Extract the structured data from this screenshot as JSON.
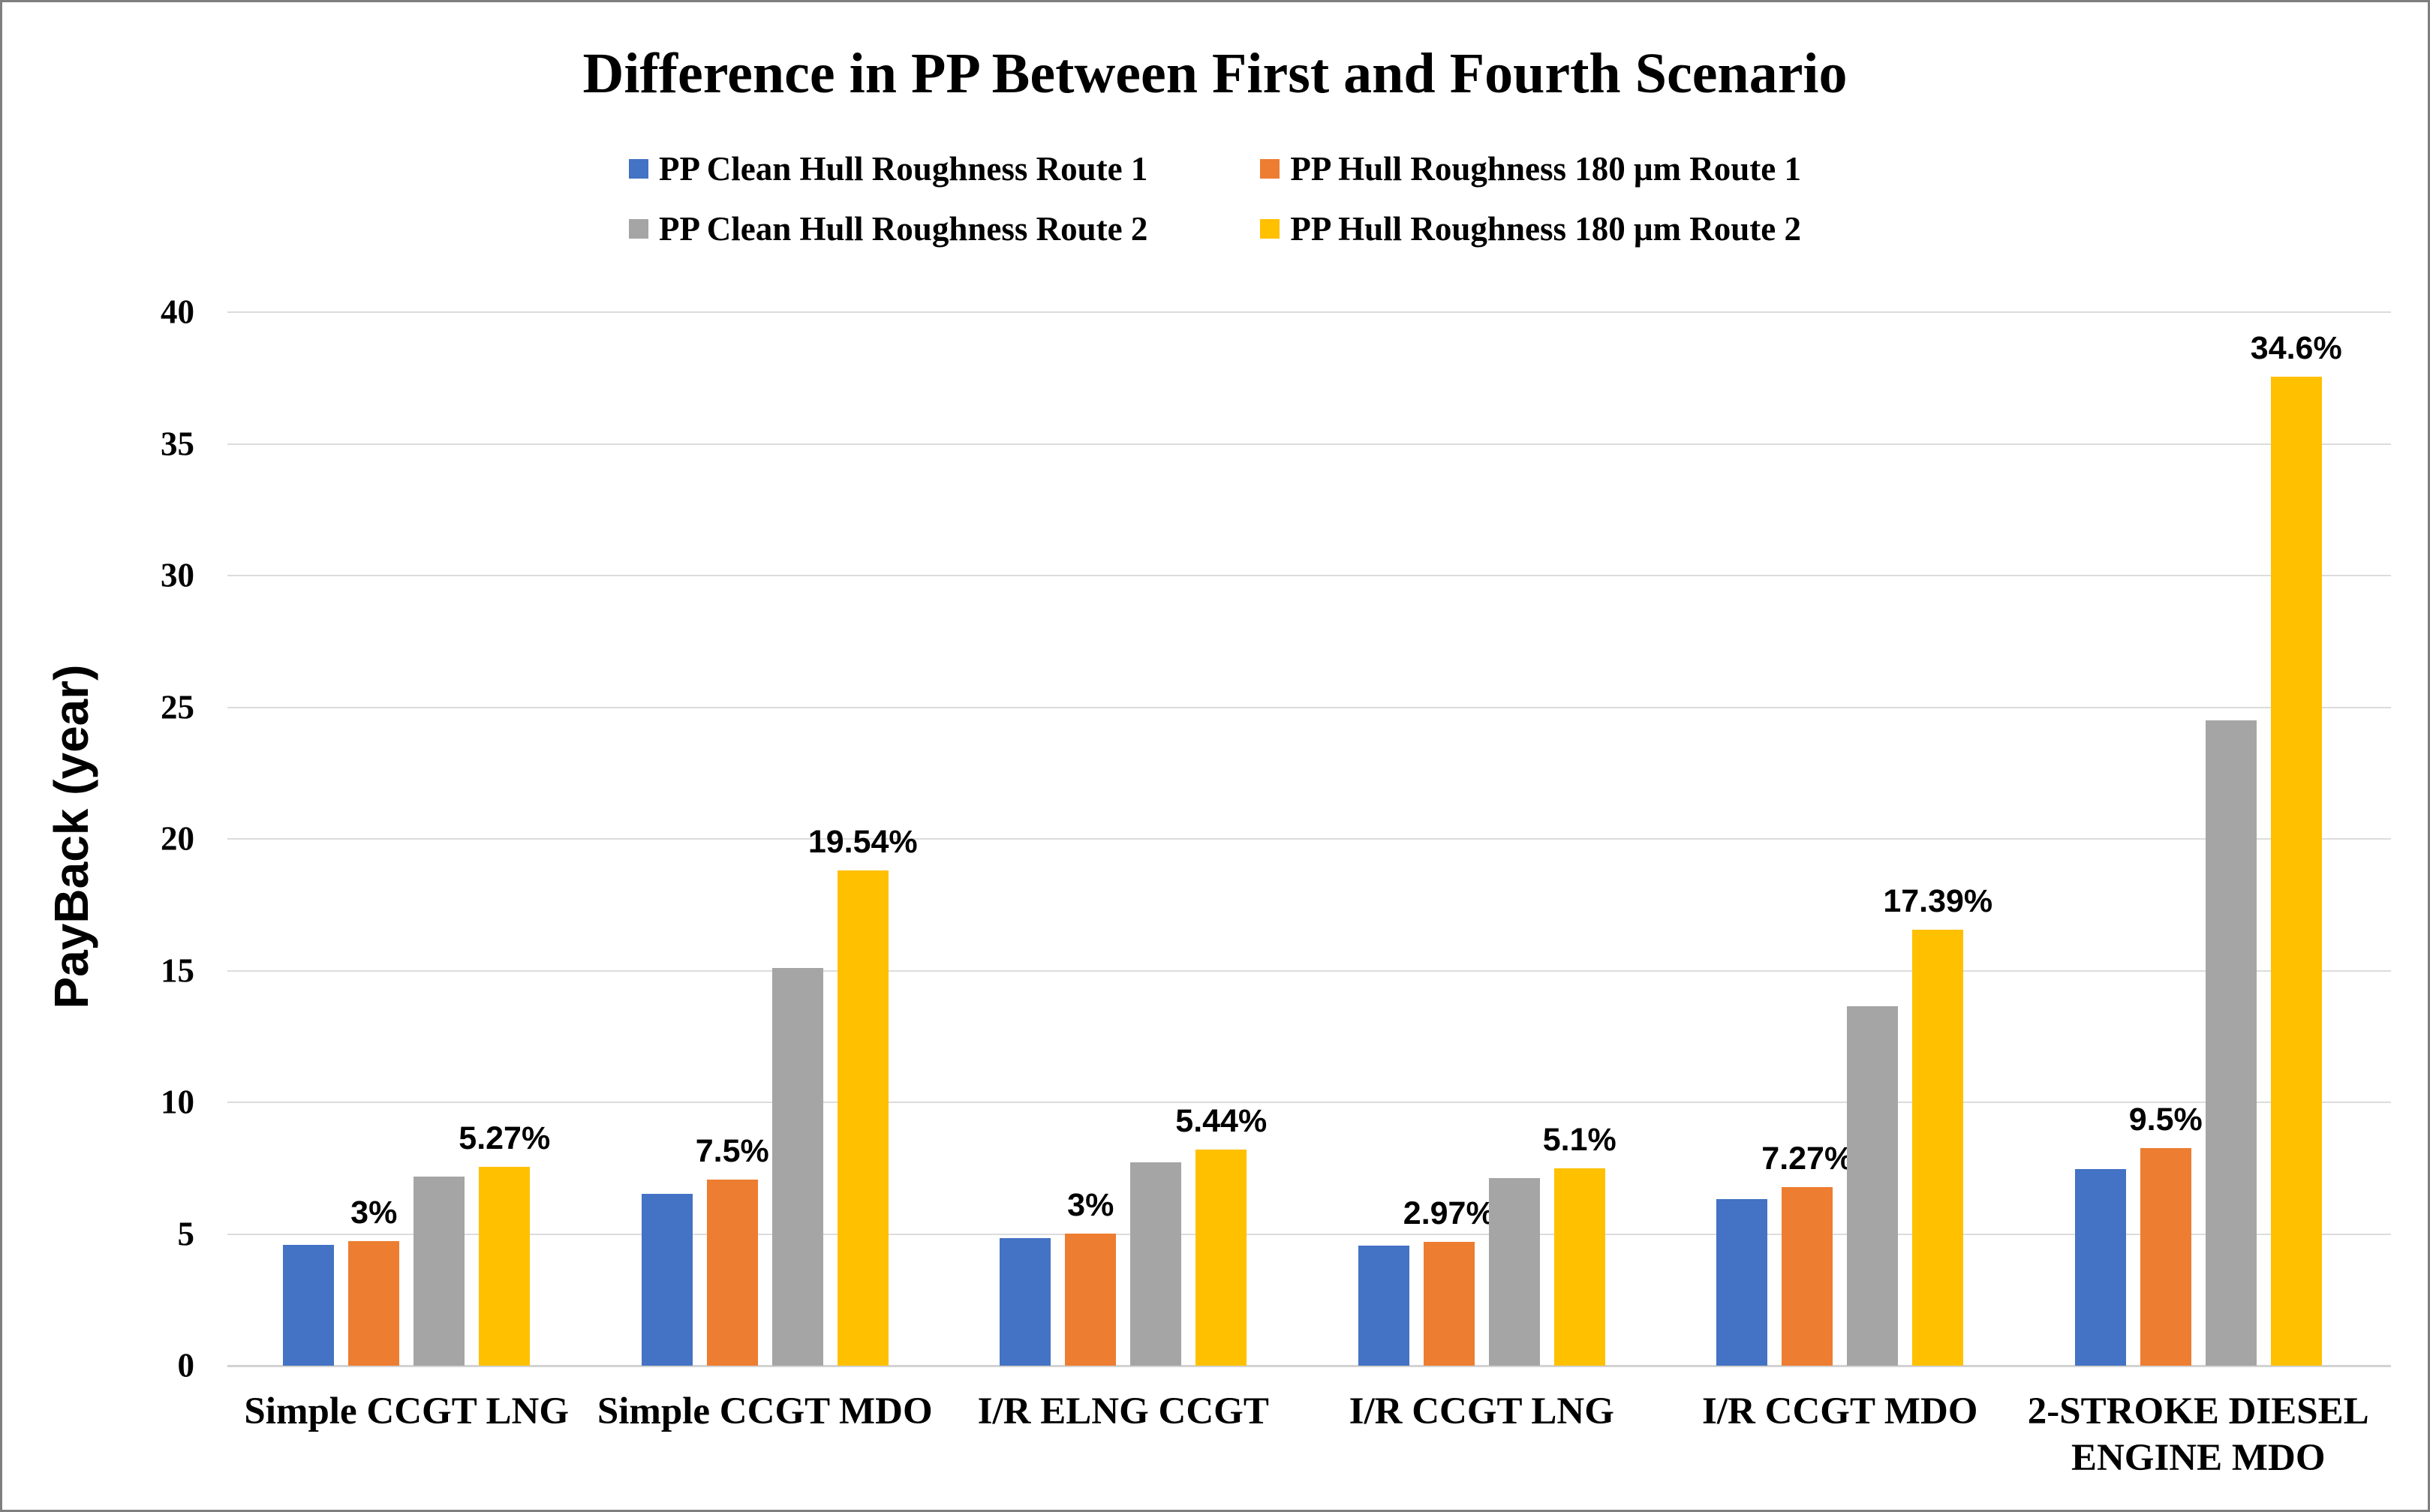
{
  "chart_data": {
    "type": "bar",
    "title": "Difference in PP Between First and Fourth Scenario",
    "ylabel": "PayBack (year)",
    "xlabel": "",
    "ylim": [
      0,
      40
    ],
    "yticks": [
      0,
      5,
      10,
      15,
      20,
      25,
      30,
      35,
      40
    ],
    "grid": true,
    "legend_position": "top-center-two-rows",
    "colors": {
      "gridline": "#dcdcdc",
      "axis_line": "#d2d2d2",
      "text": "#000000",
      "background": "#ffffff",
      "border": "#7f7f7f"
    },
    "categories": [
      "Simple CCGT LNG",
      "Simple CCGT MDO",
      "I/R ELNG CCGT",
      "I/R CCGT LNG",
      "I/R CCGT MDO",
      "2-STROKE DIESEL ENGINE MDO"
    ],
    "series": [
      {
        "name": "PP Clean Hull Roughness Route 1",
        "color": "#4472C4",
        "values": [
          4.6,
          6.53,
          4.85,
          4.56,
          6.33,
          7.47
        ],
        "point_labels": [
          "",
          "",
          "",
          "",
          "",
          ""
        ]
      },
      {
        "name": "PP Hull Roughness 180 μm Route 1",
        "color": "#ED7D31",
        "values": [
          4.74,
          7.07,
          5.0,
          4.7,
          6.79,
          8.25
        ],
        "point_labels": [
          "3%",
          "7.5%",
          "3%",
          "2.97%",
          "7.27%",
          "9.5%"
        ]
      },
      {
        "name": "PP Clean Hull Roughness Route 2",
        "color": "#A5A5A5",
        "values": [
          7.18,
          15.1,
          7.72,
          7.13,
          13.65,
          24.5
        ],
        "point_labels": [
          "",
          "",
          "",
          "",
          "",
          ""
        ]
      },
      {
        "name": "PP Hull Roughness 180 μm Route 2",
        "color": "#FFC000",
        "values": [
          7.56,
          18.8,
          8.2,
          7.5,
          16.55,
          37.55
        ],
        "point_labels": [
          "5.27%",
          "19.54%",
          "5.44%",
          "5.1%",
          "17.39%",
          "34.6%"
        ]
      }
    ]
  }
}
